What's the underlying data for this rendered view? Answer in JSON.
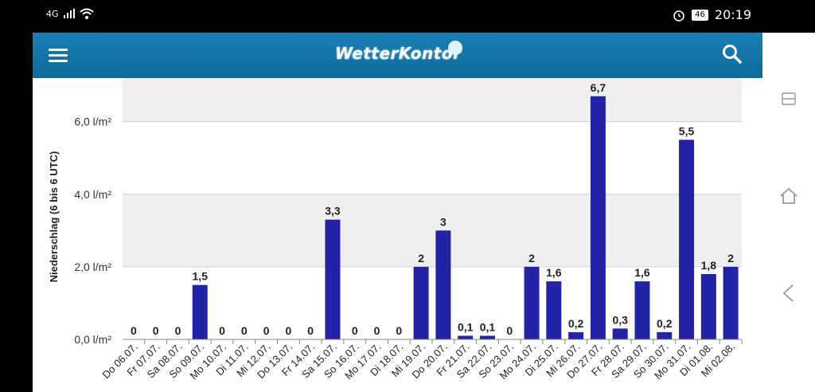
{
  "status_bar": {
    "network": "4G",
    "battery": "46",
    "time": "20:19",
    "icons": [
      "signal-icon",
      "wifi-icon",
      "alarm-icon",
      "battery-icon"
    ]
  },
  "header": {
    "logo_text": "WetterKontor",
    "menu_icon": "hamburger-menu-icon",
    "search_icon": "search-icon",
    "bg_color": "#1479ae"
  },
  "chart_data": {
    "type": "bar",
    "ylabel": "Niederschlag (6 bis 6 UTC)",
    "ylim": [
      0,
      7.2
    ],
    "yticks": [
      {
        "value": 0,
        "label": "0,0 l/m²"
      },
      {
        "value": 2,
        "label": "2,0 l/m²"
      },
      {
        "value": 4,
        "label": "4,0 l/m²"
      },
      {
        "value": 6,
        "label": "6,0 l/m²"
      }
    ],
    "categories": [
      "Do 06.07.",
      "Fr 07.07.",
      "Sa 08.07.",
      "So 09.07.",
      "Mo 10.07.",
      "Di 11.07.",
      "Mi 12.07.",
      "Do 13.07.",
      "Fr 14.07.",
      "Sa 15.07.",
      "So 16.07.",
      "Mo 17.07.",
      "Di 18.07.",
      "Mi 19.07.",
      "Do 20.07.",
      "Fr 21.07.",
      "Sa 22.07.",
      "So 23.07.",
      "Mo 24.07.",
      "Di 25.07.",
      "Mi 26.07.",
      "Do 27.07.",
      "Fr 28.07.",
      "Sa 29.07.",
      "So 30.07.",
      "Mo 31.07.",
      "Di 01.08.",
      "Mi 02.08."
    ],
    "values": [
      0,
      0,
      0,
      1.5,
      0,
      0,
      0,
      0,
      0,
      3.3,
      0,
      0,
      0,
      2,
      3,
      0.1,
      0.1,
      0,
      2,
      1.6,
      0.2,
      6.7,
      0.3,
      1.6,
      0.2,
      5.5,
      1.8,
      2
    ],
    "value_labels": [
      "0",
      "0",
      "0",
      "1,5",
      "0",
      "0",
      "0",
      "0",
      "0",
      "3,3",
      "0",
      "0",
      "0",
      "2",
      "3",
      "0,1",
      "0,1",
      "0",
      "2",
      "1,6",
      "0,2",
      "6,7",
      "0,3",
      "1,6",
      "0,2",
      "5,5",
      "1,8",
      "2"
    ],
    "bar_color": "#2323a8",
    "grid": true,
    "band_color": "#efefef"
  },
  "nav_bar": {
    "items": [
      "recent-apps-icon",
      "home-icon",
      "back-icon"
    ]
  }
}
